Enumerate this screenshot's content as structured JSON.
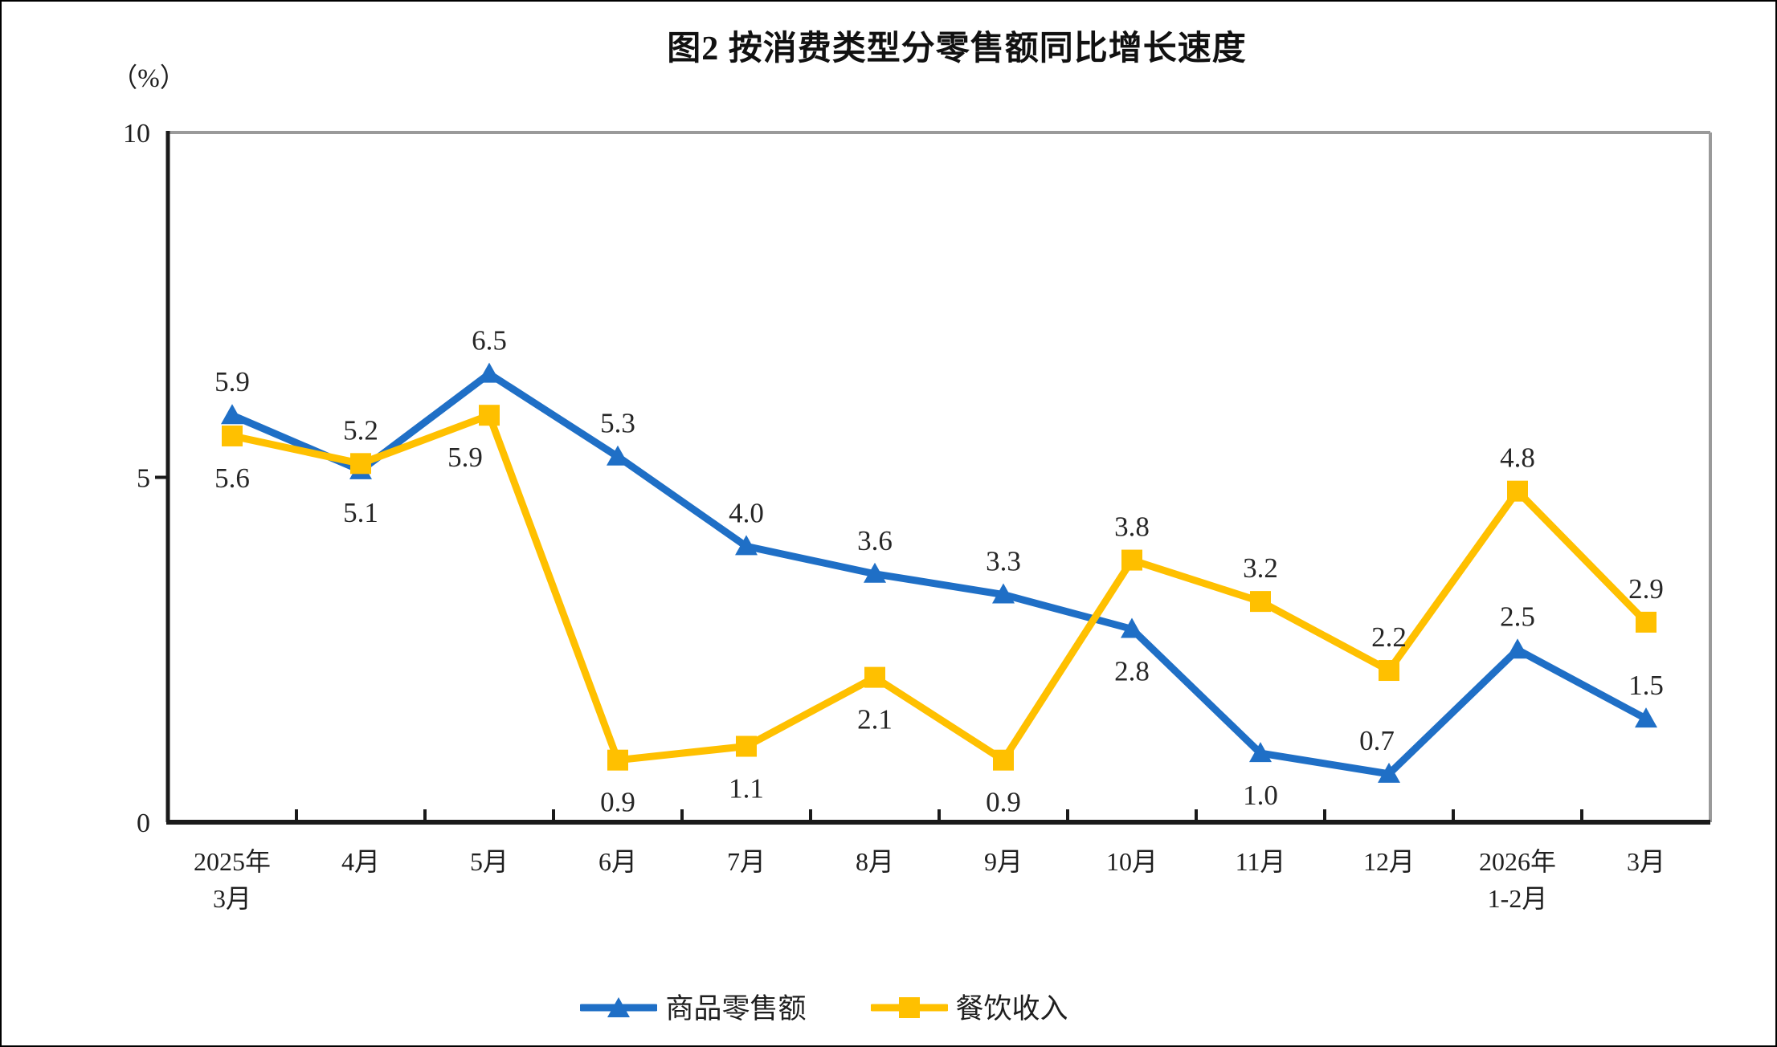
{
  "page": {
    "background": "#ffffff",
    "border_color": "#000000"
  },
  "chart_data": {
    "type": "line",
    "title": "图2 按消费类型分零售额同比增长速度",
    "y_unit_label": "（%）",
    "ylim": [
      0,
      10
    ],
    "yticks": [
      10,
      5,
      0
    ],
    "grid": false,
    "legend_position": "bottom",
    "categories": [
      "2025年3月",
      "4月",
      "5月",
      "6月",
      "7月",
      "8月",
      "9月",
      "10月",
      "11月",
      "12月",
      "2026年1-2月",
      "3月"
    ],
    "category_label_lines": [
      [
        "2025年",
        "3月"
      ],
      [
        "4月"
      ],
      [
        "5月"
      ],
      [
        "6月"
      ],
      [
        "7月"
      ],
      [
        "8月"
      ],
      [
        "9月"
      ],
      [
        "10月"
      ],
      [
        "11月"
      ],
      [
        "12月"
      ],
      [
        "2026年",
        "1-2月"
      ],
      [
        "3月"
      ]
    ],
    "series": [
      {
        "name": "商品零售额",
        "color": "#1F6FC6",
        "marker": "triangle",
        "values": [
          5.9,
          5.1,
          6.5,
          5.3,
          4.0,
          3.6,
          3.3,
          2.8,
          1.0,
          0.7,
          2.5,
          1.5
        ],
        "data_labels": [
          "5.9",
          "5.1",
          "6.5",
          "5.3",
          "4.0",
          "3.6",
          "3.3",
          "2.8",
          "1.0",
          "0.7",
          "2.5",
          "1.5"
        ],
        "data_label_positions": [
          "above",
          "below",
          "above",
          "above",
          "above",
          "above",
          "above",
          "below",
          "below",
          "above",
          "above",
          "above"
        ],
        "data_label_dx": {
          "9": -15
        }
      },
      {
        "name": "餐饮收入",
        "color": "#FFC000",
        "marker": "square",
        "values": [
          5.6,
          5.2,
          5.9,
          0.9,
          1.1,
          2.1,
          0.9,
          3.8,
          3.2,
          2.2,
          4.8,
          2.9
        ],
        "data_labels": [
          "5.6",
          "5.2",
          "5.9",
          "0.9",
          "1.1",
          "2.1",
          "0.9",
          "3.8",
          "3.2",
          "2.2",
          "4.8",
          "2.9"
        ],
        "data_label_positions": [
          "below",
          "above",
          "below",
          "below",
          "below",
          "below",
          "below",
          "above",
          "above",
          "above",
          "above",
          "above"
        ],
        "data_label_dx": {
          "2": -30
        }
      }
    ],
    "colors": {
      "axis": "#1a1a1a",
      "plot_border_gray": "#9a9a9a",
      "tick_label": "#1f1f1f",
      "data_label": "#262626"
    }
  }
}
